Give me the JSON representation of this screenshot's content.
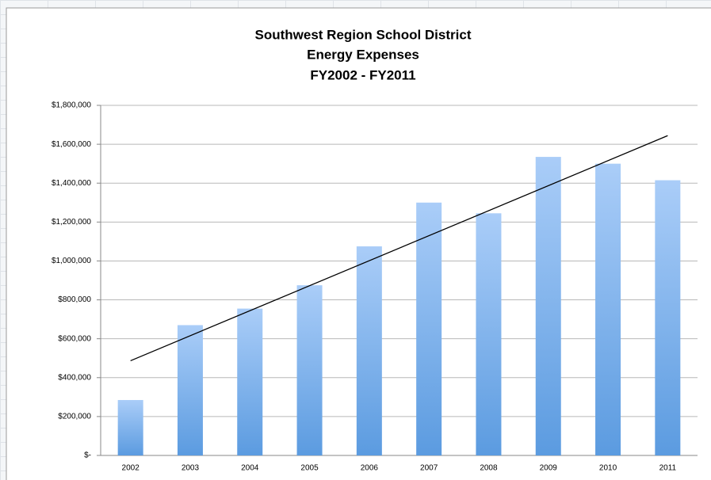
{
  "chart_data": {
    "type": "bar",
    "title": [
      "Southwest Region School District",
      "Energy Expenses",
      "FY2002 - FY2011"
    ],
    "categories": [
      "2002",
      "2003",
      "2004",
      "2005",
      "2006",
      "2007",
      "2008",
      "2009",
      "2010",
      "2011"
    ],
    "values": [
      285000,
      670000,
      755000,
      875000,
      1075000,
      1300000,
      1245000,
      1535000,
      1500000,
      1415000
    ],
    "color": [
      "#aacdf8",
      "#5b9be0"
    ],
    "ylim": [
      0,
      1800000
    ],
    "yticks": [
      {
        "value": 0,
        "label": "$-"
      },
      {
        "value": 200000,
        "label": "$200,000"
      },
      {
        "value": 400000,
        "label": "$400,000"
      },
      {
        "value": 600000,
        "label": "$600,000"
      },
      {
        "value": 800000,
        "label": "$800,000"
      },
      {
        "value": 1000000,
        "label": "$1,000,000"
      },
      {
        "value": 1200000,
        "label": "$1,200,000"
      },
      {
        "value": 1400000,
        "label": "$1,400,000"
      },
      {
        "value": 1600000,
        "label": "$1,600,000"
      },
      {
        "value": 1800000,
        "label": "$1,800,000"
      }
    ],
    "grid": true,
    "trendline": "linear",
    "trendline_color": "#000000"
  }
}
